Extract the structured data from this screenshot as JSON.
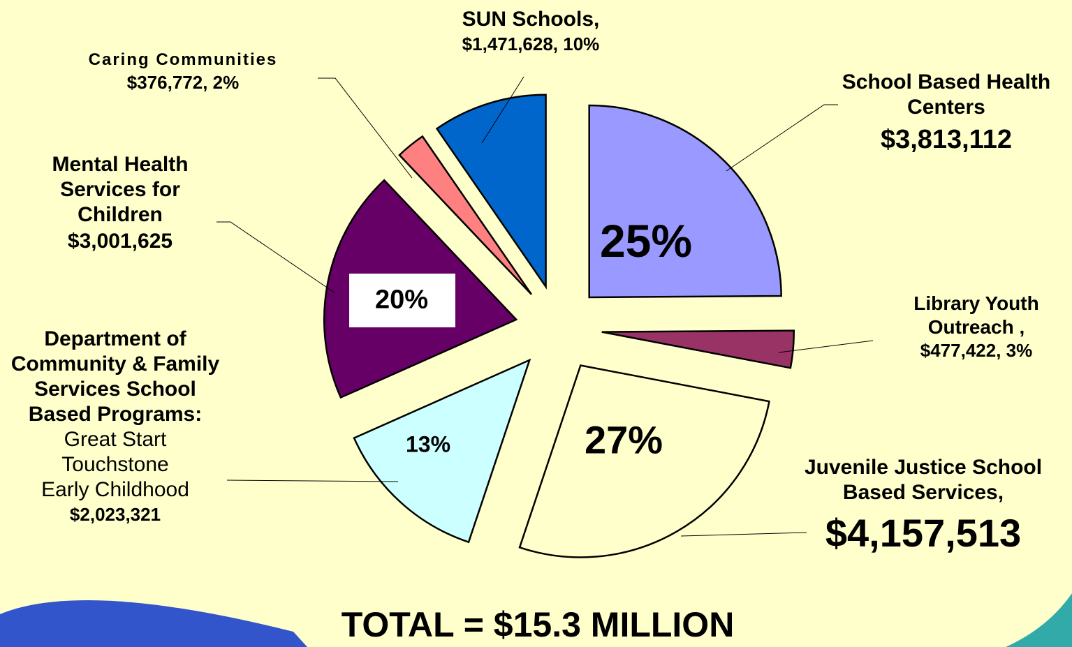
{
  "chart_data": {
    "type": "pie",
    "title": "TOTAL = $15.3 MILLION",
    "categories": [
      "School Based Health Centers",
      "Library Youth Outreach ,",
      "Juvenile Justice School Based Services,",
      "Department of Community & Family Services School Based Programs:",
      "Mental Health Services for Children",
      "Caring Communities",
      "SUN Schools,"
    ],
    "values": [
      3813112,
      477422,
      4157513,
      2023321,
      3001625,
      376772,
      1471628
    ],
    "value_labels": [
      "$3,813,112",
      "$477,422,",
      "$4,157,513",
      "$2,023,321",
      "$3,001,625",
      "$376,772,",
      "$1,471,628,"
    ],
    "percents": [
      25,
      3,
      27,
      13,
      20,
      2,
      10
    ],
    "percent_labels": [
      "25%",
      "3%",
      "27%",
      "13%",
      "20%",
      "2%",
      "10%"
    ],
    "programs": [
      "Great Start",
      "Touchstone",
      "Early Childhood"
    ],
    "colors": [
      "#9999ff",
      "#993366",
      "#ffffcc",
      "#ccffff",
      "#660066",
      "#ff8080",
      "#0066cc"
    ]
  }
}
